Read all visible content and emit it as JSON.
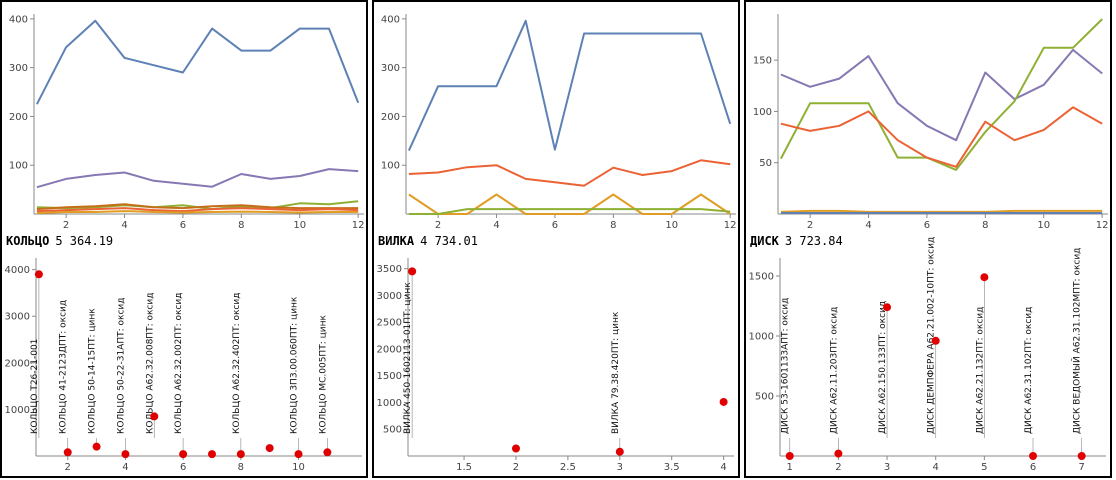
{
  "colors": {
    "blue": "#5E81B5",
    "orange": "#E19C24",
    "green": "#8FB032",
    "red": "#EB6235",
    "purple": "#8778B3",
    "brown": "#C56E1A",
    "point": "#E00000",
    "axis": "#888888"
  },
  "chart_data": [
    {
      "panel": "КОЛЬЦО",
      "type": "line",
      "x": [
        1,
        2,
        3,
        4,
        5,
        6,
        7,
        8,
        9,
        10,
        11,
        12
      ],
      "xticks": [
        2,
        4,
        6,
        8,
        10,
        12
      ],
      "yticks": [
        100,
        200,
        300,
        400
      ],
      "xlim": [
        0.9,
        12.2
      ],
      "ylim": [
        0,
        410
      ],
      "series": [
        {
          "color": "blue",
          "values": [
            225,
            342,
            396,
            320,
            305,
            290,
            380,
            335,
            335,
            380,
            380,
            228
          ]
        },
        {
          "color": "purple",
          "values": [
            55,
            72,
            80,
            85,
            68,
            62,
            56,
            82,
            72,
            78,
            92,
            88
          ]
        },
        {
          "color": "green",
          "values": [
            14,
            12,
            14,
            18,
            14,
            18,
            10,
            16,
            12,
            22,
            20,
            26
          ]
        },
        {
          "color": "brown",
          "values": [
            10,
            14,
            16,
            20,
            14,
            12,
            16,
            18,
            14,
            12,
            12,
            12
          ]
        },
        {
          "color": "red",
          "values": [
            6,
            8,
            10,
            12,
            8,
            6,
            10,
            12,
            10,
            8,
            10,
            8
          ]
        },
        {
          "color": "orange",
          "values": [
            2,
            4,
            4,
            6,
            4,
            3,
            4,
            5,
            4,
            3,
            4,
            4
          ]
        }
      ]
    },
    {
      "panel": "ВИЛКА",
      "type": "line",
      "x": [
        1,
        2,
        3,
        4,
        5,
        6,
        7,
        8,
        9,
        10,
        11,
        12
      ],
      "xticks": [
        2,
        4,
        6,
        8,
        10,
        12
      ],
      "yticks": [
        100,
        200,
        300,
        400
      ],
      "xlim": [
        0.9,
        12.2
      ],
      "ylim": [
        0,
        410
      ],
      "series": [
        {
          "color": "blue",
          "values": [
            130,
            262,
            262,
            262,
            396,
            132,
            370,
            370,
            370,
            370,
            370,
            185
          ]
        },
        {
          "color": "red",
          "values": [
            82,
            85,
            96,
            100,
            72,
            65,
            58,
            95,
            80,
            88,
            110,
            102
          ]
        },
        {
          "color": "orange",
          "values": [
            40,
            0,
            0,
            40,
            0,
            0,
            0,
            40,
            0,
            0,
            40,
            0
          ]
        },
        {
          "color": "green",
          "values": [
            0,
            0,
            10,
            10,
            10,
            10,
            10,
            10,
            10,
            10,
            10,
            5
          ]
        }
      ]
    },
    {
      "panel": "ДИСК",
      "type": "line",
      "x": [
        1,
        2,
        3,
        4,
        5,
        6,
        7,
        8,
        9,
        10,
        11,
        12
      ],
      "xticks": [
        2,
        4,
        6,
        8,
        10,
        12
      ],
      "yticks": [
        50,
        100,
        150
      ],
      "xlim": [
        0.9,
        12.2
      ],
      "ylim": [
        0,
        195
      ],
      "series": [
        {
          "color": "purple",
          "values": [
            136,
            124,
            132,
            154,
            108,
            86,
            72,
            138,
            112,
            126,
            160,
            137
          ]
        },
        {
          "color": "green",
          "values": [
            54,
            108,
            108,
            108,
            55,
            55,
            43,
            80,
            110,
            162,
            162,
            190
          ]
        },
        {
          "color": "red",
          "values": [
            88,
            81,
            86,
            100,
            72,
            55,
            46,
            90,
            72,
            82,
            104,
            88
          ]
        },
        {
          "color": "orange",
          "values": [
            2,
            3,
            3,
            2,
            2,
            2,
            2,
            2,
            3,
            3,
            3,
            3
          ]
        },
        {
          "color": "blue",
          "values": [
            1,
            1,
            1,
            1,
            1,
            1,
            1,
            1,
            1,
            1,
            1,
            1
          ]
        }
      ]
    },
    {
      "panel": "КОЛЬЦО",
      "type": "scatter",
      "xticks": [
        2,
        4,
        6,
        8,
        10
      ],
      "yticks": [
        1000,
        2000,
        3000,
        4000
      ],
      "xlim": [
        0.9,
        12.2
      ],
      "ylim": [
        0,
        4250
      ],
      "points": [
        {
          "x": 1,
          "y": 3900,
          "label": "КОЛЬЦО Т26-21-001"
        },
        {
          "x": 2,
          "y": 80,
          "label": "КОЛЬЦО 41-2123ДПТ: оксид"
        },
        {
          "x": 3,
          "y": 200,
          "label": "КОЛЬЦО 50-14-15ПТ: цинк"
        },
        {
          "x": 4,
          "y": 40,
          "label": "КОЛЬЦО 50-22-31АПТ: оксид"
        },
        {
          "x": 5,
          "y": 850,
          "label": "КОЛЬЦО А62.32.008ПТ: оксид"
        },
        {
          "x": 6,
          "y": 40,
          "label": "КОЛЬЦО А62.32.002ПТ: оксид"
        },
        {
          "x": 7,
          "y": 40,
          "label": ""
        },
        {
          "x": 8,
          "y": 40,
          "label": "КОЛЬЦО А62.32.402ПТ: оксид"
        },
        {
          "x": 9,
          "y": 170,
          "label": ""
        },
        {
          "x": 10,
          "y": 40,
          "label": "КОЛЬЦО 3П3.00.060ПТ: цинк"
        },
        {
          "x": 11,
          "y": 80,
          "label": "КОЛЬЦО МС.005ПТ: цинк"
        }
      ]
    },
    {
      "panel": "ВИЛКА",
      "type": "scatter",
      "xticks": [
        1.5,
        2.0,
        2.5,
        3.0,
        3.5,
        4.0
      ],
      "yticks": [
        500,
        1000,
        1500,
        2000,
        2500,
        3000,
        3500
      ],
      "xlim": [
        0.96,
        4.1
      ],
      "ylim": [
        0,
        3700
      ],
      "points": [
        {
          "x": 1.0,
          "y": 3450,
          "label": "ВИЛКА 450-1602113-01ПТ: цинк"
        },
        {
          "x": 2.0,
          "y": 140,
          "label": ""
        },
        {
          "x": 3.0,
          "y": 80,
          "label": "ВИЛКА 79.38.420ПТ: цинк"
        },
        {
          "x": 4.0,
          "y": 1010,
          "label": ""
        }
      ]
    },
    {
      "panel": "ДИСК",
      "type": "scatter",
      "xticks": [
        1,
        2,
        3,
        4,
        5,
        6,
        7
      ],
      "yticks": [
        500,
        1000,
        1500
      ],
      "xlim": [
        0.8,
        7.5
      ],
      "ylim": [
        0,
        1650
      ],
      "points": [
        {
          "x": 1,
          "y": 0,
          "label": "ДИСК 53-1601133АПТ: оксид"
        },
        {
          "x": 2,
          "y": 20,
          "label": "ДИСК А62.11.203ПТ: оксид"
        },
        {
          "x": 3,
          "y": 1240,
          "label": "ДИСК А62.150.133ПТ: оксид"
        },
        {
          "x": 4,
          "y": 960,
          "label": "ДИСК ДЕМПФЕРА А62.21.002-10ПТ: оксид"
        },
        {
          "x": 5,
          "y": 1490,
          "label": "ДИСК А62.21.132ПТ: оксид"
        },
        {
          "x": 6,
          "y": 0,
          "label": "ДИСК А62.31.102ПТ: оксид"
        },
        {
          "x": 7,
          "y": 0,
          "label": "ДИСК ВЕДОМЫЙ А62.31.102МПТ: оксид"
        }
      ]
    }
  ],
  "panels": [
    {
      "name": "КОЛЬЦО",
      "total": "5 364.19"
    },
    {
      "name": "ВИЛКА",
      "total": "4 734.01"
    },
    {
      "name": "ДИСК",
      "total": "3 723.84"
    }
  ]
}
